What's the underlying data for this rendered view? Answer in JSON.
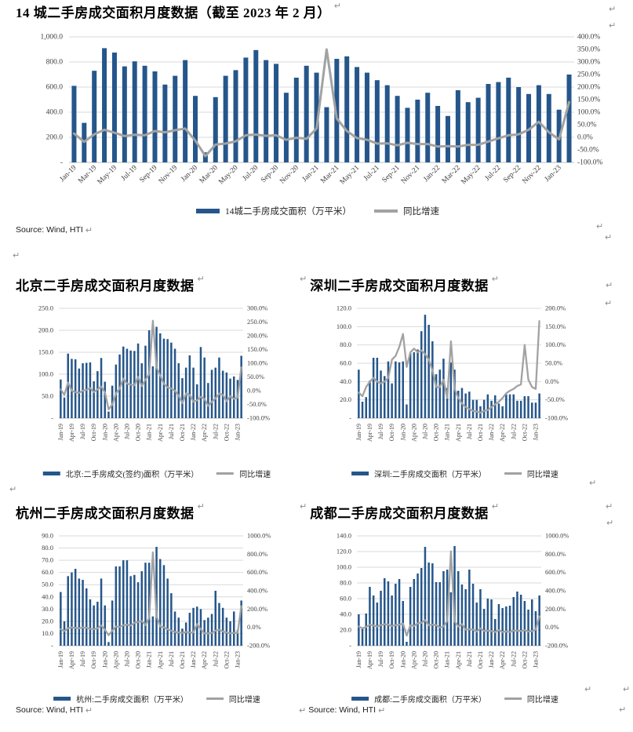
{
  "document": {
    "title": "14 城二手房成交面积月度数据（截至 2023 年 2 月）",
    "source_note": "Source: Wind, HTI",
    "pilcrow": "↵"
  },
  "colors": {
    "bar": "#25568B",
    "line": "#A2A2A2",
    "grid": "#D9D9D9",
    "baseline": "#BFBFBF",
    "tick_text": "#404040"
  },
  "chart_data": [
    {
      "id": "cities14",
      "type": "bar+line",
      "title": "14 城二手房成交面积月度数据（截至 2023 年 2 月）",
      "categories": [
        "Jan-19",
        "Feb-19",
        "Mar-19",
        "Apr-19",
        "May-19",
        "Jun-19",
        "Jul-19",
        "Aug-19",
        "Sep-19",
        "Oct-19",
        "Nov-19",
        "Dec-19",
        "Jan-20",
        "Feb-20",
        "Mar-20",
        "Apr-20",
        "May-20",
        "Jun-20",
        "Jul-20",
        "Aug-20",
        "Sep-20",
        "Oct-20",
        "Nov-20",
        "Dec-20",
        "Jan-21",
        "Feb-21",
        "Mar-21",
        "Apr-21",
        "May-21",
        "Jun-21",
        "Jul-21",
        "Aug-21",
        "Sep-21",
        "Oct-21",
        "Nov-21",
        "Dec-21",
        "Jan-22",
        "Feb-22",
        "Mar-22",
        "Apr-22",
        "May-22",
        "Jun-22",
        "Jul-22",
        "Aug-22",
        "Sep-22",
        "Oct-22",
        "Nov-22",
        "Dec-22",
        "Jan-23",
        "Feb-23"
      ],
      "x_label_step": 2,
      "left_axis": {
        "min": 0,
        "max": 1000,
        "ticks": [
          "1,000.0",
          "800.0",
          "600.0",
          "400.0",
          "200.0",
          "-"
        ]
      },
      "right_axis": {
        "min": -100,
        "max": 400,
        "ticks": [
          "400.0%",
          "350.0%",
          "300.0%",
          "250.0%",
          "200.0%",
          "150.0%",
          "100.0%",
          "50.0%",
          "0.0%",
          "-50.0%",
          "-100.0%"
        ]
      },
      "bar_series": {
        "name": "14城二手房成交面积（万平米）",
        "values": [
          610,
          315,
          730,
          910,
          875,
          765,
          805,
          770,
          725,
          620,
          690,
          815,
          530,
          80,
          520,
          690,
          735,
          835,
          895,
          815,
          785,
          555,
          675,
          770,
          715,
          440,
          825,
          845,
          760,
          715,
          655,
          615,
          530,
          435,
          500,
          555,
          450,
          370,
          575,
          480,
          515,
          625,
          640,
          675,
          600,
          545,
          615,
          545,
          420,
          700
        ]
      },
      "line_series": {
        "name": "同比增速",
        "values_pct": [
          15,
          -18,
          12,
          30,
          18,
          5,
          10,
          8,
          25,
          20,
          28,
          35,
          -13,
          -75,
          -29,
          -25,
          -16,
          8,
          11,
          6,
          8,
          -10,
          -2,
          -6,
          35,
          350,
          75,
          25,
          -3,
          -10,
          -25,
          -24,
          -32,
          -22,
          -27,
          -27,
          -37,
          -35,
          -37,
          -30,
          -30,
          -17,
          -4,
          8,
          12,
          30,
          62,
          20,
          -8,
          140
        ]
      }
    },
    {
      "id": "beijing",
      "type": "bar+line",
      "title": "北京二手房成交面积月度数据",
      "categories": [
        "Jan-19",
        "Feb-19",
        "Mar-19",
        "Apr-19",
        "May-19",
        "Jun-19",
        "Jul-19",
        "Aug-19",
        "Sep-19",
        "Oct-19",
        "Nov-19",
        "Dec-19",
        "Jan-20",
        "Feb-20",
        "Mar-20",
        "Apr-20",
        "May-20",
        "Jun-20",
        "Jul-20",
        "Aug-20",
        "Sep-20",
        "Oct-20",
        "Nov-20",
        "Dec-20",
        "Jan-21",
        "Feb-21",
        "Mar-21",
        "Apr-21",
        "May-21",
        "Jun-21",
        "Jul-21",
        "Aug-21",
        "Sep-21",
        "Oct-21",
        "Nov-21",
        "Dec-21",
        "Jan-22",
        "Feb-22",
        "Mar-22",
        "Apr-22",
        "May-22",
        "Jun-22",
        "Jul-22",
        "Aug-22",
        "Sep-22",
        "Oct-22",
        "Nov-22",
        "Dec-22",
        "Jan-23",
        "Feb-23"
      ],
      "x_label_step": 3,
      "left_axis": {
        "min": 0,
        "max": 250,
        "ticks": [
          "250.0",
          "200.0",
          "150.0",
          "100.0",
          "50.0",
          "-"
        ]
      },
      "right_axis": {
        "min": -100,
        "max": 300,
        "ticks": [
          "300.0%",
          "250.0%",
          "200.0%",
          "150.0%",
          "100.0%",
          "50.0%",
          "0.0%",
          "-50.0%",
          "-100.0%"
        ]
      },
      "bar_series": {
        "name": "北京:二手房成交(签约)面积（万平米）",
        "values": [
          88,
          47,
          147,
          135,
          134,
          113,
          125,
          126,
          127,
          84,
          107,
          137,
          83,
          15,
          74,
          122,
          145,
          163,
          158,
          154,
          153,
          170,
          125,
          165,
          200,
          118,
          208,
          193,
          181,
          180,
          172,
          158,
          125,
          91,
          115,
          143,
          115,
          77,
          162,
          138,
          80,
          110,
          115,
          138,
          108,
          104,
          90,
          95,
          87,
          142
        ]
      },
      "line_series": {
        "name": "同比增速",
        "values_pct": [
          5,
          -15,
          30,
          0,
          -5,
          -8,
          0,
          3,
          10,
          -5,
          5,
          15,
          -6,
          -68,
          -50,
          -10,
          8,
          44,
          26,
          22,
          20,
          50,
          17,
          40,
          60,
          255,
          85,
          55,
          25,
          12,
          8,
          0,
          -18,
          -45,
          -10,
          -15,
          -40,
          -35,
          -22,
          -30,
          -55,
          -40,
          -28,
          -10,
          -15,
          -38,
          -20,
          -30,
          -25,
          85
        ]
      }
    },
    {
      "id": "shenzhen",
      "type": "bar+line",
      "title": "深圳二手房成交面积月度数据",
      "categories": [
        "Jan-19",
        "Feb-19",
        "Mar-19",
        "Apr-19",
        "May-19",
        "Jun-19",
        "Jul-19",
        "Aug-19",
        "Sep-19",
        "Oct-19",
        "Nov-19",
        "Dec-19",
        "Jan-20",
        "Feb-20",
        "Mar-20",
        "Apr-20",
        "May-20",
        "Jun-20",
        "Jul-20",
        "Aug-20",
        "Sep-20",
        "Oct-20",
        "Nov-20",
        "Dec-20",
        "Jan-21",
        "Feb-21",
        "Mar-21",
        "Apr-21",
        "May-21",
        "Jun-21",
        "Jul-21",
        "Aug-21",
        "Sep-21",
        "Oct-21",
        "Nov-21",
        "Dec-21",
        "Jan-22",
        "Feb-22",
        "Mar-22",
        "Apr-22",
        "May-22",
        "Jun-22",
        "Jul-22",
        "Aug-22",
        "Sep-22",
        "Oct-22",
        "Nov-22",
        "Dec-22",
        "Jan-23",
        "Feb-23"
      ],
      "x_label_step": 3,
      "left_axis": {
        "min": 0,
        "max": 120,
        "ticks": [
          "120.0",
          "100.0",
          "80.0",
          "60.0",
          "40.0",
          "20.0",
          "-"
        ]
      },
      "right_axis": {
        "min": -100,
        "max": 200,
        "ticks": [
          "200.0%",
          "150.0%",
          "100.0%",
          "50.0%",
          "0.0%",
          "-50.0%",
          "-100.0%"
        ]
      },
      "bar_series": {
        "name": "深圳:二手房成交面积（万平米）",
        "values": [
          53,
          18,
          23,
          41,
          66,
          66,
          52,
          46,
          62,
          38,
          62,
          61,
          62,
          15,
          71,
          72,
          75,
          95,
          113,
          102,
          84,
          48,
          53,
          65,
          33,
          61,
          53,
          30,
          33,
          27,
          29,
          20,
          20,
          13,
          20,
          26,
          19,
          25,
          16,
          13,
          26,
          26,
          26,
          19,
          19,
          24,
          24,
          17,
          17,
          27
        ]
      },
      "line_series": {
        "name": "同比增速",
        "values_pct": [
          -30,
          -40,
          -15,
          0,
          10,
          0,
          -5,
          0,
          10,
          60,
          70,
          95,
          130,
          40,
          80,
          90,
          80,
          85,
          75,
          60,
          30,
          -15,
          -15,
          5,
          -45,
          110,
          -20,
          -45,
          -60,
          -70,
          -75,
          -80,
          -82,
          -85,
          -80,
          -78,
          -70,
          -62,
          -55,
          -45,
          -32,
          -25,
          -20,
          -12,
          -8,
          100,
          5,
          -15,
          -20,
          165
        ]
      }
    },
    {
      "id": "hangzhou",
      "type": "bar+line",
      "title": "杭州二手房成交面积月度数据",
      "categories": [
        "Jan-19",
        "Feb-19",
        "Mar-19",
        "Apr-19",
        "May-19",
        "Jun-19",
        "Jul-19",
        "Aug-19",
        "Sep-19",
        "Oct-19",
        "Nov-19",
        "Dec-19",
        "Jan-20",
        "Feb-20",
        "Mar-20",
        "Apr-20",
        "May-20",
        "Jun-20",
        "Jul-20",
        "Aug-20",
        "Sep-20",
        "Oct-20",
        "Nov-20",
        "Dec-20",
        "Jan-21",
        "Feb-21",
        "Mar-21",
        "Apr-21",
        "May-21",
        "Jun-21",
        "Jul-21",
        "Aug-21",
        "Sep-21",
        "Oct-21",
        "Nov-21",
        "Dec-21",
        "Jan-22",
        "Feb-22",
        "Mar-22",
        "Apr-22",
        "May-22",
        "Jun-22",
        "Jul-22",
        "Aug-22",
        "Sep-22",
        "Oct-22",
        "Nov-22",
        "Dec-22",
        "Jan-23",
        "Feb-23"
      ],
      "x_label_step": 3,
      "left_axis": {
        "min": 0,
        "max": 90,
        "ticks": [
          "90.0",
          "80.0",
          "70.0",
          "60.0",
          "50.0",
          "40.0",
          "30.0",
          "20.0",
          "10.0",
          "-"
        ]
      },
      "right_axis": {
        "min": -200,
        "max": 1000,
        "ticks": [
          "1000.0%",
          "800.0%",
          "600.0%",
          "400.0%",
          "200.0%",
          "0.0%",
          "-200.0%"
        ]
      },
      "bar_series": {
        "name": "杭州:二手房成交面积（万平米）",
        "values": [
          44,
          20,
          57,
          60,
          63,
          55,
          54,
          47,
          38,
          33,
          36,
          55,
          33,
          3,
          37,
          65,
          65,
          70,
          70,
          57,
          58,
          52,
          61,
          68,
          68,
          24,
          81,
          71,
          66,
          55,
          43,
          28,
          23,
          14,
          19,
          27,
          31,
          32,
          30,
          21,
          23,
          26,
          45,
          35,
          31,
          23,
          20,
          28,
          13,
          37
        ]
      },
      "line_series": {
        "name": "同比增速",
        "values_pct": [
          -20,
          -40,
          -10,
          0,
          -5,
          -10,
          0,
          -5,
          -15,
          -20,
          -10,
          20,
          -25,
          -85,
          -35,
          10,
          5,
          25,
          30,
          20,
          50,
          60,
          70,
          25,
          105,
          820,
          120,
          10,
          0,
          -20,
          -35,
          -50,
          -55,
          -60,
          -50,
          -55,
          -55,
          35,
          -20,
          -65,
          -65,
          -60,
          -35,
          -25,
          -45,
          -55,
          -65,
          -60,
          -60,
          230
        ]
      }
    },
    {
      "id": "chengdu",
      "type": "bar+line",
      "title": "成都二手房成交面积月度数据",
      "categories": [
        "Jan-19",
        "Feb-19",
        "Mar-19",
        "Apr-19",
        "May-19",
        "Jun-19",
        "Jul-19",
        "Aug-19",
        "Sep-19",
        "Oct-19",
        "Nov-19",
        "Dec-19",
        "Jan-20",
        "Feb-20",
        "Mar-20",
        "Apr-20",
        "May-20",
        "Jun-20",
        "Jul-20",
        "Aug-20",
        "Sep-20",
        "Oct-20",
        "Nov-20",
        "Dec-20",
        "Jan-21",
        "Feb-21",
        "Mar-21",
        "Apr-21",
        "May-21",
        "Jun-21",
        "Jul-21",
        "Aug-21",
        "Sep-21",
        "Oct-21",
        "Nov-21",
        "Dec-21",
        "Jan-22",
        "Feb-22",
        "Mar-22",
        "Apr-22",
        "May-22",
        "Jun-22",
        "Jul-22",
        "Aug-22",
        "Sep-22",
        "Oct-22",
        "Nov-22",
        "Dec-22",
        "Jan-23",
        "Feb-23"
      ],
      "x_label_step": 3,
      "left_axis": {
        "min": 0,
        "max": 140,
        "ticks": [
          "140.0",
          "120.0",
          "100.0",
          "80.0",
          "60.0",
          "40.0",
          "20.0",
          "-"
        ]
      },
      "right_axis": {
        "min": -200,
        "max": 1000,
        "ticks": [
          "1000.0%",
          "800.0%",
          "600.0%",
          "400.0%",
          "200.0%",
          "0.0%",
          "-200.0%"
        ]
      },
      "bar_series": {
        "name": "成都:二手房成交面积（万平米）",
        "values": [
          40,
          23,
          41,
          75,
          64,
          55,
          70,
          86,
          82,
          64,
          79,
          85,
          57,
          5,
          75,
          85,
          92,
          99,
          126,
          106,
          105,
          81,
          81,
          95,
          97,
          68,
          127,
          95,
          78,
          72,
          97,
          79,
          55,
          72,
          47,
          60,
          59,
          34,
          53,
          48,
          50,
          51,
          62,
          69,
          65,
          57,
          46,
          59,
          44,
          64
        ]
      },
      "line_series": {
        "name": "同比增速",
        "values_pct": [
          10,
          -10,
          5,
          30,
          20,
          10,
          25,
          35,
          30,
          15,
          25,
          30,
          42,
          -90,
          25,
          15,
          45,
          50,
          80,
          25,
          30,
          25,
          0,
          10,
          70,
          830,
          65,
          10,
          35,
          -25,
          -20,
          -25,
          -45,
          -10,
          -40,
          -35,
          -40,
          -50,
          -30,
          -50,
          -45,
          -50,
          -35,
          -35,
          -40,
          -30,
          -45,
          -40,
          -25,
          120
        ]
      }
    }
  ]
}
